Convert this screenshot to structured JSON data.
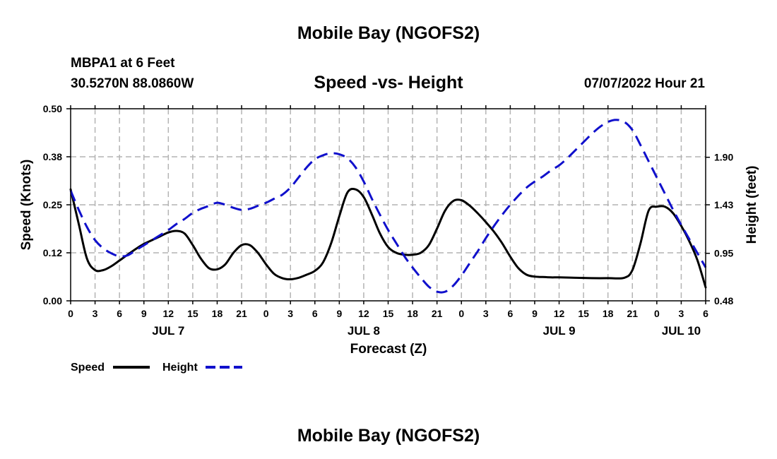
{
  "page_title": "Mobile Bay (NGOFS2)",
  "footer_title": "Mobile Bay (NGOFS2)",
  "station": {
    "name": "MBPA1 at 6 Feet",
    "coords": "30.5270N  88.0860W",
    "forecast_time": "07/07/2022 Hour 21"
  },
  "colors": {
    "speed": "#000000",
    "height": "#1010cc",
    "grid": "#b4b4b4"
  },
  "chart_data": {
    "type": "line",
    "title": "Speed -vs- Height",
    "xlabel": "Forecast (Z)",
    "ylabel": "Speed (Knots)",
    "y2label": "Height (feet)",
    "x_unit": "hours since JUL 7 00Z",
    "xlim": [
      0,
      78
    ],
    "ylim": [
      0,
      0.5
    ],
    "y2lim": [
      0.48,
      2.38
    ],
    "x_ticks": [
      0,
      3,
      6,
      9,
      12,
      15,
      18,
      21,
      24,
      27,
      30,
      33,
      36,
      39,
      42,
      45,
      48,
      51,
      54,
      57,
      60,
      63,
      66,
      69,
      72,
      75,
      78
    ],
    "x_tick_labels": [
      "0",
      "3",
      "6",
      "9",
      "12",
      "15",
      "18",
      "21",
      "0",
      "3",
      "6",
      "9",
      "12",
      "15",
      "18",
      "21",
      "0",
      "3",
      "6",
      "9",
      "12",
      "15",
      "18",
      "21",
      "0",
      "3",
      "6"
    ],
    "y_ticks": [
      0.0,
      0.125,
      0.25,
      0.375,
      0.5
    ],
    "y_tick_labels": [
      "0.00",
      "0.12",
      "0.25",
      "0.38",
      "0.50"
    ],
    "y2_ticks": [
      0.48,
      0.95,
      1.43,
      1.9
    ],
    "y2_tick_labels": [
      "0.48",
      "0.95",
      "1.43",
      "1.90"
    ],
    "day_labels": [
      {
        "label": "JUL 7",
        "x": 12
      },
      {
        "label": "JUL 8",
        "x": 36
      },
      {
        "label": "JUL 9",
        "x": 60
      },
      {
        "label": "JUL 10",
        "x": 75
      }
    ],
    "series": [
      {
        "name": "Speed",
        "axis": "left",
        "style": "solid",
        "x": [
          0,
          1,
          2,
          3,
          4,
          5,
          6,
          7,
          8,
          9,
          10,
          11,
          12,
          13,
          14,
          15,
          16,
          17,
          18,
          19,
          20,
          21,
          22,
          23,
          24,
          25,
          26,
          27,
          28,
          29,
          30,
          31,
          32,
          33,
          34,
          35,
          36,
          37,
          38,
          39,
          40,
          41,
          42,
          43,
          44,
          45,
          46,
          47,
          48,
          49,
          50,
          51,
          52,
          53,
          54,
          55,
          56,
          57,
          58,
          59,
          60,
          62,
          64,
          66,
          68,
          69,
          70,
          71,
          72,
          73,
          74,
          75,
          76,
          77,
          78
        ],
        "values": [
          0.29,
          0.2,
          0.11,
          0.08,
          0.08,
          0.09,
          0.105,
          0.12,
          0.135,
          0.148,
          0.158,
          0.168,
          0.178,
          0.182,
          0.175,
          0.145,
          0.11,
          0.085,
          0.082,
          0.095,
          0.125,
          0.145,
          0.145,
          0.125,
          0.095,
          0.07,
          0.059,
          0.056,
          0.06,
          0.068,
          0.078,
          0.1,
          0.15,
          0.22,
          0.282,
          0.29,
          0.27,
          0.225,
          0.175,
          0.14,
          0.125,
          0.12,
          0.12,
          0.125,
          0.145,
          0.188,
          0.235,
          0.26,
          0.262,
          0.248,
          0.228,
          0.205,
          0.18,
          0.15,
          0.115,
          0.085,
          0.068,
          0.063,
          0.062,
          0.061,
          0.061,
          0.06,
          0.059,
          0.059,
          0.06,
          0.08,
          0.15,
          0.235,
          0.245,
          0.245,
          0.228,
          0.195,
          0.155,
          0.105,
          0.035
        ]
      },
      {
        "name": "Height",
        "axis": "right",
        "style": "dashed",
        "x": [
          0,
          1,
          2,
          3,
          4,
          5,
          6,
          7,
          8,
          9,
          10,
          11,
          12,
          13,
          14,
          15,
          16,
          17,
          18,
          19,
          20,
          21,
          22,
          23,
          24,
          25,
          26,
          27,
          28,
          29,
          30,
          31,
          32,
          33,
          34,
          35,
          36,
          37,
          38,
          39,
          40,
          41,
          42,
          43,
          44,
          45,
          46,
          47,
          48,
          49,
          50,
          51,
          52,
          53,
          54,
          55,
          56,
          57,
          58,
          59,
          60,
          61,
          62,
          63,
          64,
          65,
          66,
          67,
          68,
          69,
          70,
          71,
          72,
          73,
          74,
          75,
          76,
          77,
          78
        ],
        "values": [
          1.57,
          1.38,
          1.21,
          1.08,
          1.0,
          0.95,
          0.92,
          0.93,
          0.98,
          1.03,
          1.08,
          1.13,
          1.18,
          1.24,
          1.29,
          1.35,
          1.39,
          1.42,
          1.45,
          1.43,
          1.4,
          1.38,
          1.39,
          1.42,
          1.45,
          1.49,
          1.53,
          1.6,
          1.7,
          1.8,
          1.88,
          1.92,
          1.94,
          1.93,
          1.89,
          1.8,
          1.66,
          1.49,
          1.33,
          1.18,
          1.05,
          0.92,
          0.81,
          0.71,
          0.62,
          0.57,
          0.57,
          0.63,
          0.73,
          0.85,
          0.97,
          1.1,
          1.22,
          1.33,
          1.43,
          1.52,
          1.6,
          1.66,
          1.71,
          1.77,
          1.82,
          1.89,
          1.97,
          2.05,
          2.13,
          2.2,
          2.25,
          2.27,
          2.25,
          2.17,
          2.02,
          1.86,
          1.7,
          1.54,
          1.38,
          1.23,
          1.09,
          0.95,
          0.81
        ]
      }
    ],
    "legend": [
      {
        "label": "Speed",
        "style": "solid"
      },
      {
        "label": "Height",
        "style": "dashed"
      }
    ]
  }
}
